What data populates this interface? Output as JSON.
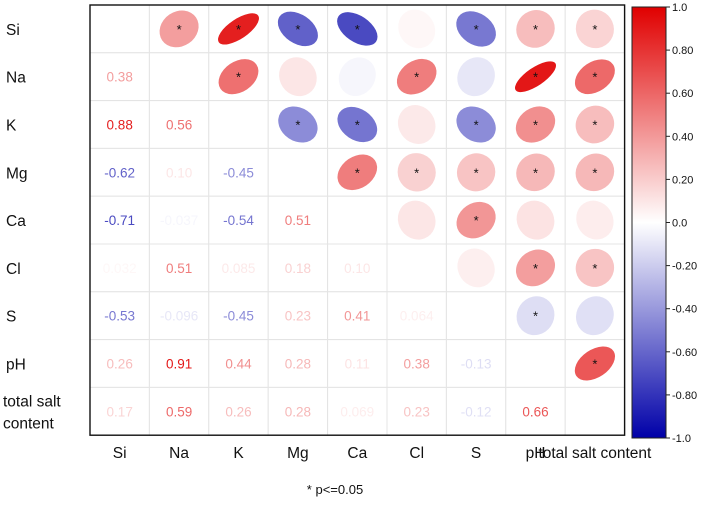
{
  "chart_data": {
    "type": "heatmap",
    "subtype": "correlation-matrix",
    "variables": [
      "Si",
      "Na",
      "K",
      "Mg",
      "Ca",
      "Cl",
      "S",
      "pH",
      "total salt content"
    ],
    "row_labels": [
      [
        "Si"
      ],
      [
        "Na"
      ],
      [
        "K"
      ],
      [
        "Mg"
      ],
      [
        "Ca"
      ],
      [
        "Cl"
      ],
      [
        "S"
      ],
      [
        "pH"
      ],
      [
        "total salt",
        "content"
      ]
    ],
    "col_labels": [
      "Si",
      "Na",
      "K",
      "Mg",
      "Ca",
      "Cl",
      "S",
      "pH",
      "total salt content"
    ],
    "lower_values": [
      [
        "Si",
        "Na",
        0.38,
        "0.38"
      ],
      [
        "Si",
        "K",
        0.88,
        "0.88"
      ],
      [
        "Si",
        "Mg",
        -0.62,
        "-0.62"
      ],
      [
        "Si",
        "Ca",
        -0.71,
        "-0.71"
      ],
      [
        "Si",
        "Cl",
        0.032,
        "0.032"
      ],
      [
        "Si",
        "S",
        -0.53,
        "-0.53"
      ],
      [
        "Si",
        "pH",
        0.26,
        "0.26"
      ],
      [
        "Si",
        "total salt content",
        0.17,
        "0.17"
      ],
      [
        "Na",
        "K",
        0.56,
        "0.56"
      ],
      [
        "Na",
        "Mg",
        0.1,
        "0.10"
      ],
      [
        "Na",
        "Ca",
        -0.037,
        "-0.037"
      ],
      [
        "Na",
        "Cl",
        0.51,
        "0.51"
      ],
      [
        "Na",
        "S",
        -0.096,
        "-0.096"
      ],
      [
        "Na",
        "pH",
        0.91,
        "0.91"
      ],
      [
        "Na",
        "total salt content",
        0.59,
        "0.59"
      ],
      [
        "K",
        "Mg",
        -0.45,
        "-0.45"
      ],
      [
        "K",
        "Ca",
        -0.54,
        "-0.54"
      ],
      [
        "K",
        "Cl",
        0.085,
        "0.085"
      ],
      [
        "K",
        "S",
        -0.45,
        "-0.45"
      ],
      [
        "K",
        "pH",
        0.44,
        "0.44"
      ],
      [
        "K",
        "total salt content",
        0.26,
        "0.26"
      ],
      [
        "Mg",
        "Ca",
        0.51,
        "0.51"
      ],
      [
        "Mg",
        "Cl",
        0.18,
        "0.18"
      ],
      [
        "Mg",
        "S",
        0.23,
        "0.23"
      ],
      [
        "Mg",
        "pH",
        0.28,
        "0.28"
      ],
      [
        "Mg",
        "total salt content",
        0.28,
        "0.28"
      ],
      [
        "Ca",
        "Cl",
        0.1,
        "0.10"
      ],
      [
        "Ca",
        "S",
        0.41,
        "0.41"
      ],
      [
        "Ca",
        "pH",
        0.11,
        "0.11"
      ],
      [
        "Ca",
        "total salt content",
        0.069,
        "0.069"
      ],
      [
        "Cl",
        "S",
        0.064,
        "0.064"
      ],
      [
        "Cl",
        "pH",
        0.38,
        "0.38"
      ],
      [
        "Cl",
        "total salt content",
        0.23,
        "0.23"
      ],
      [
        "S",
        "pH",
        -0.13,
        "-0.13"
      ],
      [
        "S",
        "total salt content",
        -0.12,
        "-0.12"
      ],
      [
        "pH",
        "total salt content",
        0.66,
        "0.66"
      ]
    ],
    "significant_pairs": [
      [
        "Si",
        "Na"
      ],
      [
        "Si",
        "K"
      ],
      [
        "Si",
        "Mg"
      ],
      [
        "Si",
        "Ca"
      ],
      [
        "Si",
        "S"
      ],
      [
        "Si",
        "pH"
      ],
      [
        "Si",
        "total salt content"
      ],
      [
        "Na",
        "K"
      ],
      [
        "Na",
        "Cl"
      ],
      [
        "Na",
        "pH"
      ],
      [
        "Na",
        "total salt content"
      ],
      [
        "K",
        "Mg"
      ],
      [
        "K",
        "Ca"
      ],
      [
        "K",
        "S"
      ],
      [
        "K",
        "pH"
      ],
      [
        "K",
        "total salt content"
      ],
      [
        "Mg",
        "Ca"
      ],
      [
        "Mg",
        "Cl"
      ],
      [
        "Mg",
        "S"
      ],
      [
        "Mg",
        "pH"
      ],
      [
        "Mg",
        "total salt content"
      ],
      [
        "Ca",
        "S"
      ],
      [
        "Cl",
        "pH"
      ],
      [
        "Cl",
        "total salt content"
      ],
      [
        "S",
        "pH"
      ],
      [
        "pH",
        "total salt content"
      ]
    ],
    "significance_marker": "*",
    "footnote": "* p<=0.05",
    "colorbar": {
      "range": [
        -1.0,
        1.0
      ],
      "ticks": [
        "1.0",
        "0.80",
        "0.60",
        "0.40",
        "0.20",
        "0.0",
        "-0.20",
        "-0.40",
        "-0.60",
        "-0.80",
        "-1.0"
      ],
      "low_color": "#0000a8",
      "mid_color": "#ffffff",
      "high_color": "#e00000"
    },
    "upper_triangle": "ellipse",
    "lower_triangle": "number",
    "grid": true
  }
}
